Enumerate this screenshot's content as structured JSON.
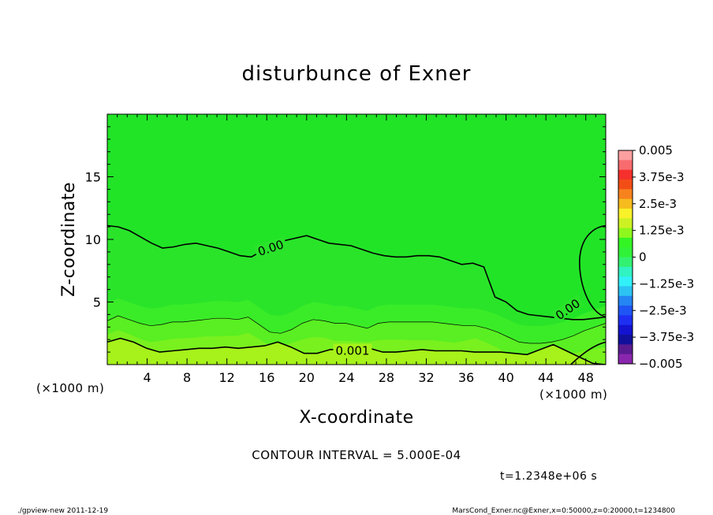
{
  "chart_data": {
    "type": "heatmap",
    "title": "disturbunce of Exner",
    "xlabel": "X-coordinate",
    "ylabel": "Z-coordinate",
    "x_unit_left": "(×1000 m)",
    "x_unit_right": "(×1000 m)",
    "xlim": [
      0,
      50
    ],
    "ylim": [
      0,
      20
    ],
    "x_ticks": [
      4,
      8,
      12,
      16,
      20,
      24,
      28,
      32,
      36,
      40,
      44,
      48
    ],
    "y_ticks": [
      5,
      10,
      15
    ],
    "contour_interval_text": "CONTOUR INTERVAL = 5.000E-04",
    "time_text": "t=1.2348e+06 s",
    "contour_labels": [
      "0.00",
      "0.00",
      "0.001"
    ],
    "contours": [
      {
        "level": 0.0,
        "z": [
          11.1,
          11.0,
          10.7,
          10.2,
          9.7,
          9.3,
          9.4,
          9.6,
          9.7,
          9.5,
          9.3,
          9.0,
          8.7,
          8.6,
          9.1,
          9.6,
          9.9,
          10.1,
          10.3,
          10.0,
          9.7,
          9.6,
          9.5,
          9.2,
          8.9,
          8.7,
          8.6,
          8.6,
          8.7,
          8.7,
          8.6,
          8.3,
          8.0,
          8.1,
          7.8,
          5.4,
          5.0,
          4.3,
          4.0,
          3.9,
          3.8,
          3.7,
          3.6,
          3.6,
          3.7,
          3.8
        ]
      },
      {
        "level": 0.0005,
        "z": [
          3.5,
          3.9,
          3.6,
          3.3,
          3.1,
          3.2,
          3.4,
          3.4,
          3.5,
          3.6,
          3.7,
          3.7,
          3.6,
          3.8,
          3.2,
          2.6,
          2.5,
          2.8,
          3.3,
          3.6,
          3.5,
          3.3,
          3.3,
          3.1,
          2.9,
          3.3,
          3.4,
          3.4,
          3.4,
          3.4,
          3.4,
          3.3,
          3.2,
          3.1,
          3.1,
          2.9,
          2.6,
          2.2,
          1.8,
          1.7,
          1.7,
          1.8,
          2.0,
          2.3,
          2.7,
          3.0,
          3.3
        ]
      },
      {
        "level": 0.001,
        "z": [
          1.8,
          2.1,
          1.8,
          1.3,
          1.0,
          1.1,
          1.2,
          1.3,
          1.3,
          1.4,
          1.3,
          1.4,
          1.5,
          1.8,
          1.4,
          0.9,
          0.9,
          1.2,
          1.2,
          1.3,
          1.3,
          1.0,
          1.0,
          1.1,
          1.2,
          1.1,
          1.1,
          1.1,
          1.0,
          1.0,
          1.0,
          0.9,
          0.8,
          1.2,
          1.6,
          1.1,
          0.6,
          0.1,
          0.0
        ]
      }
    ],
    "colorbar": {
      "labels": [
        "0.005",
        "3.75e-3",
        "2.5e-3",
        "1.25e-3",
        "0",
        "−1.25e-3",
        "−2.5e-3",
        "−3.75e-3",
        "−0.005"
      ],
      "colors": [
        "#fc9fa0",
        "#f86b6e",
        "#f5302c",
        "#f34d16",
        "#f7821e",
        "#f6bb1d",
        "#f9f129",
        "#ccf223",
        "#8ef71d",
        "#33f523",
        "#30f238",
        "#32f171",
        "#31f2c1",
        "#31f0f8",
        "#2cc3f3",
        "#2485f3",
        "#1f55f4",
        "#1e2ff2",
        "#1313d0",
        "#10109c",
        "#5a1b91",
        "#8a26ae"
      ]
    },
    "grid": false,
    "legend": "right"
  },
  "footer": {
    "left": "./gpview-new  2011-12-19",
    "right": "MarsCond_Exner.nc@Exner,x=0:50000,z=0:20000,t=1234800"
  }
}
